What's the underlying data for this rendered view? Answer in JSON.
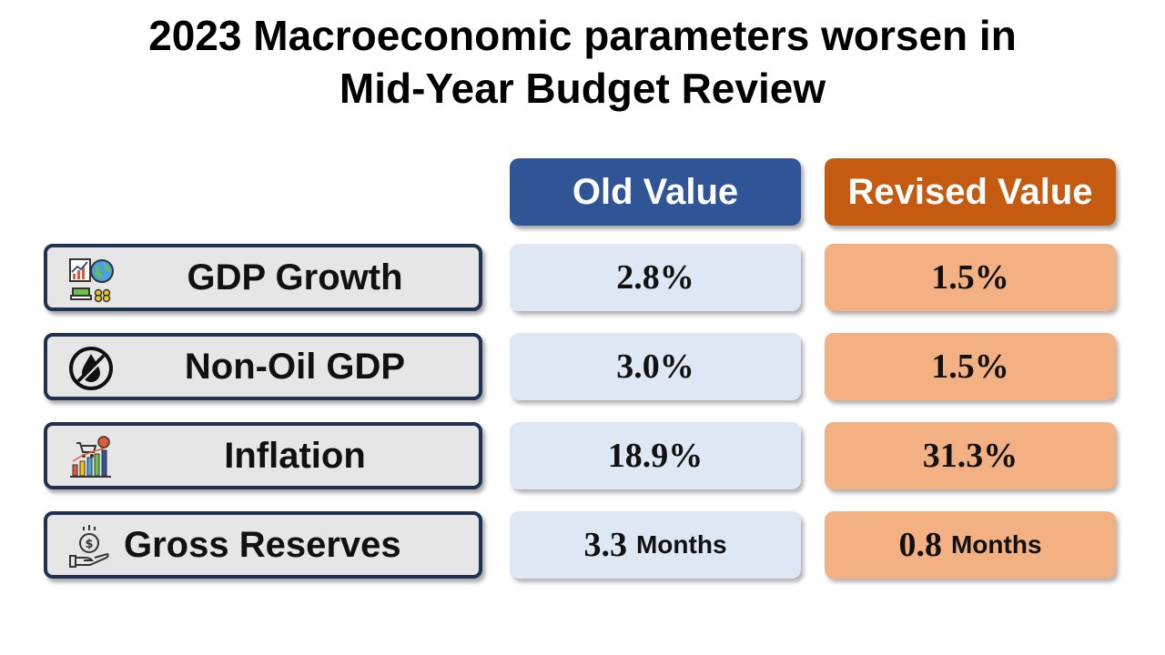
{
  "title": {
    "line1": "2023 Macroeconomic parameters worsen in",
    "line2": "Mid-Year Budget Review"
  },
  "columns": {
    "old": "Old Value",
    "revised": "Revised Value"
  },
  "colors": {
    "old_header": "#2f5597",
    "revised_header": "#c55a11",
    "old_cell": "#dde8f4",
    "revised_cell": "#f3b183",
    "label_border": "#1f3251",
    "label_bg": "#e7e6e6"
  },
  "rows": [
    {
      "label": "GDP Growth",
      "icon": "economy-growth-icon",
      "old": "2.8%",
      "old_unit": "",
      "revised": "1.5%",
      "revised_unit": ""
    },
    {
      "label": "Non-Oil GDP",
      "icon": "no-oil-icon",
      "old": "3.0%",
      "old_unit": "",
      "revised": "1.5%",
      "revised_unit": ""
    },
    {
      "label": "Inflation",
      "icon": "inflation-chart-icon",
      "old": "18.9%",
      "old_unit": "",
      "revised": "31.3%",
      "revised_unit": ""
    },
    {
      "label": "Gross Reserves",
      "icon": "money-hand-icon",
      "old": "3.3",
      "old_unit": "Months",
      "revised": "0.8",
      "revised_unit": "Months"
    }
  ]
}
